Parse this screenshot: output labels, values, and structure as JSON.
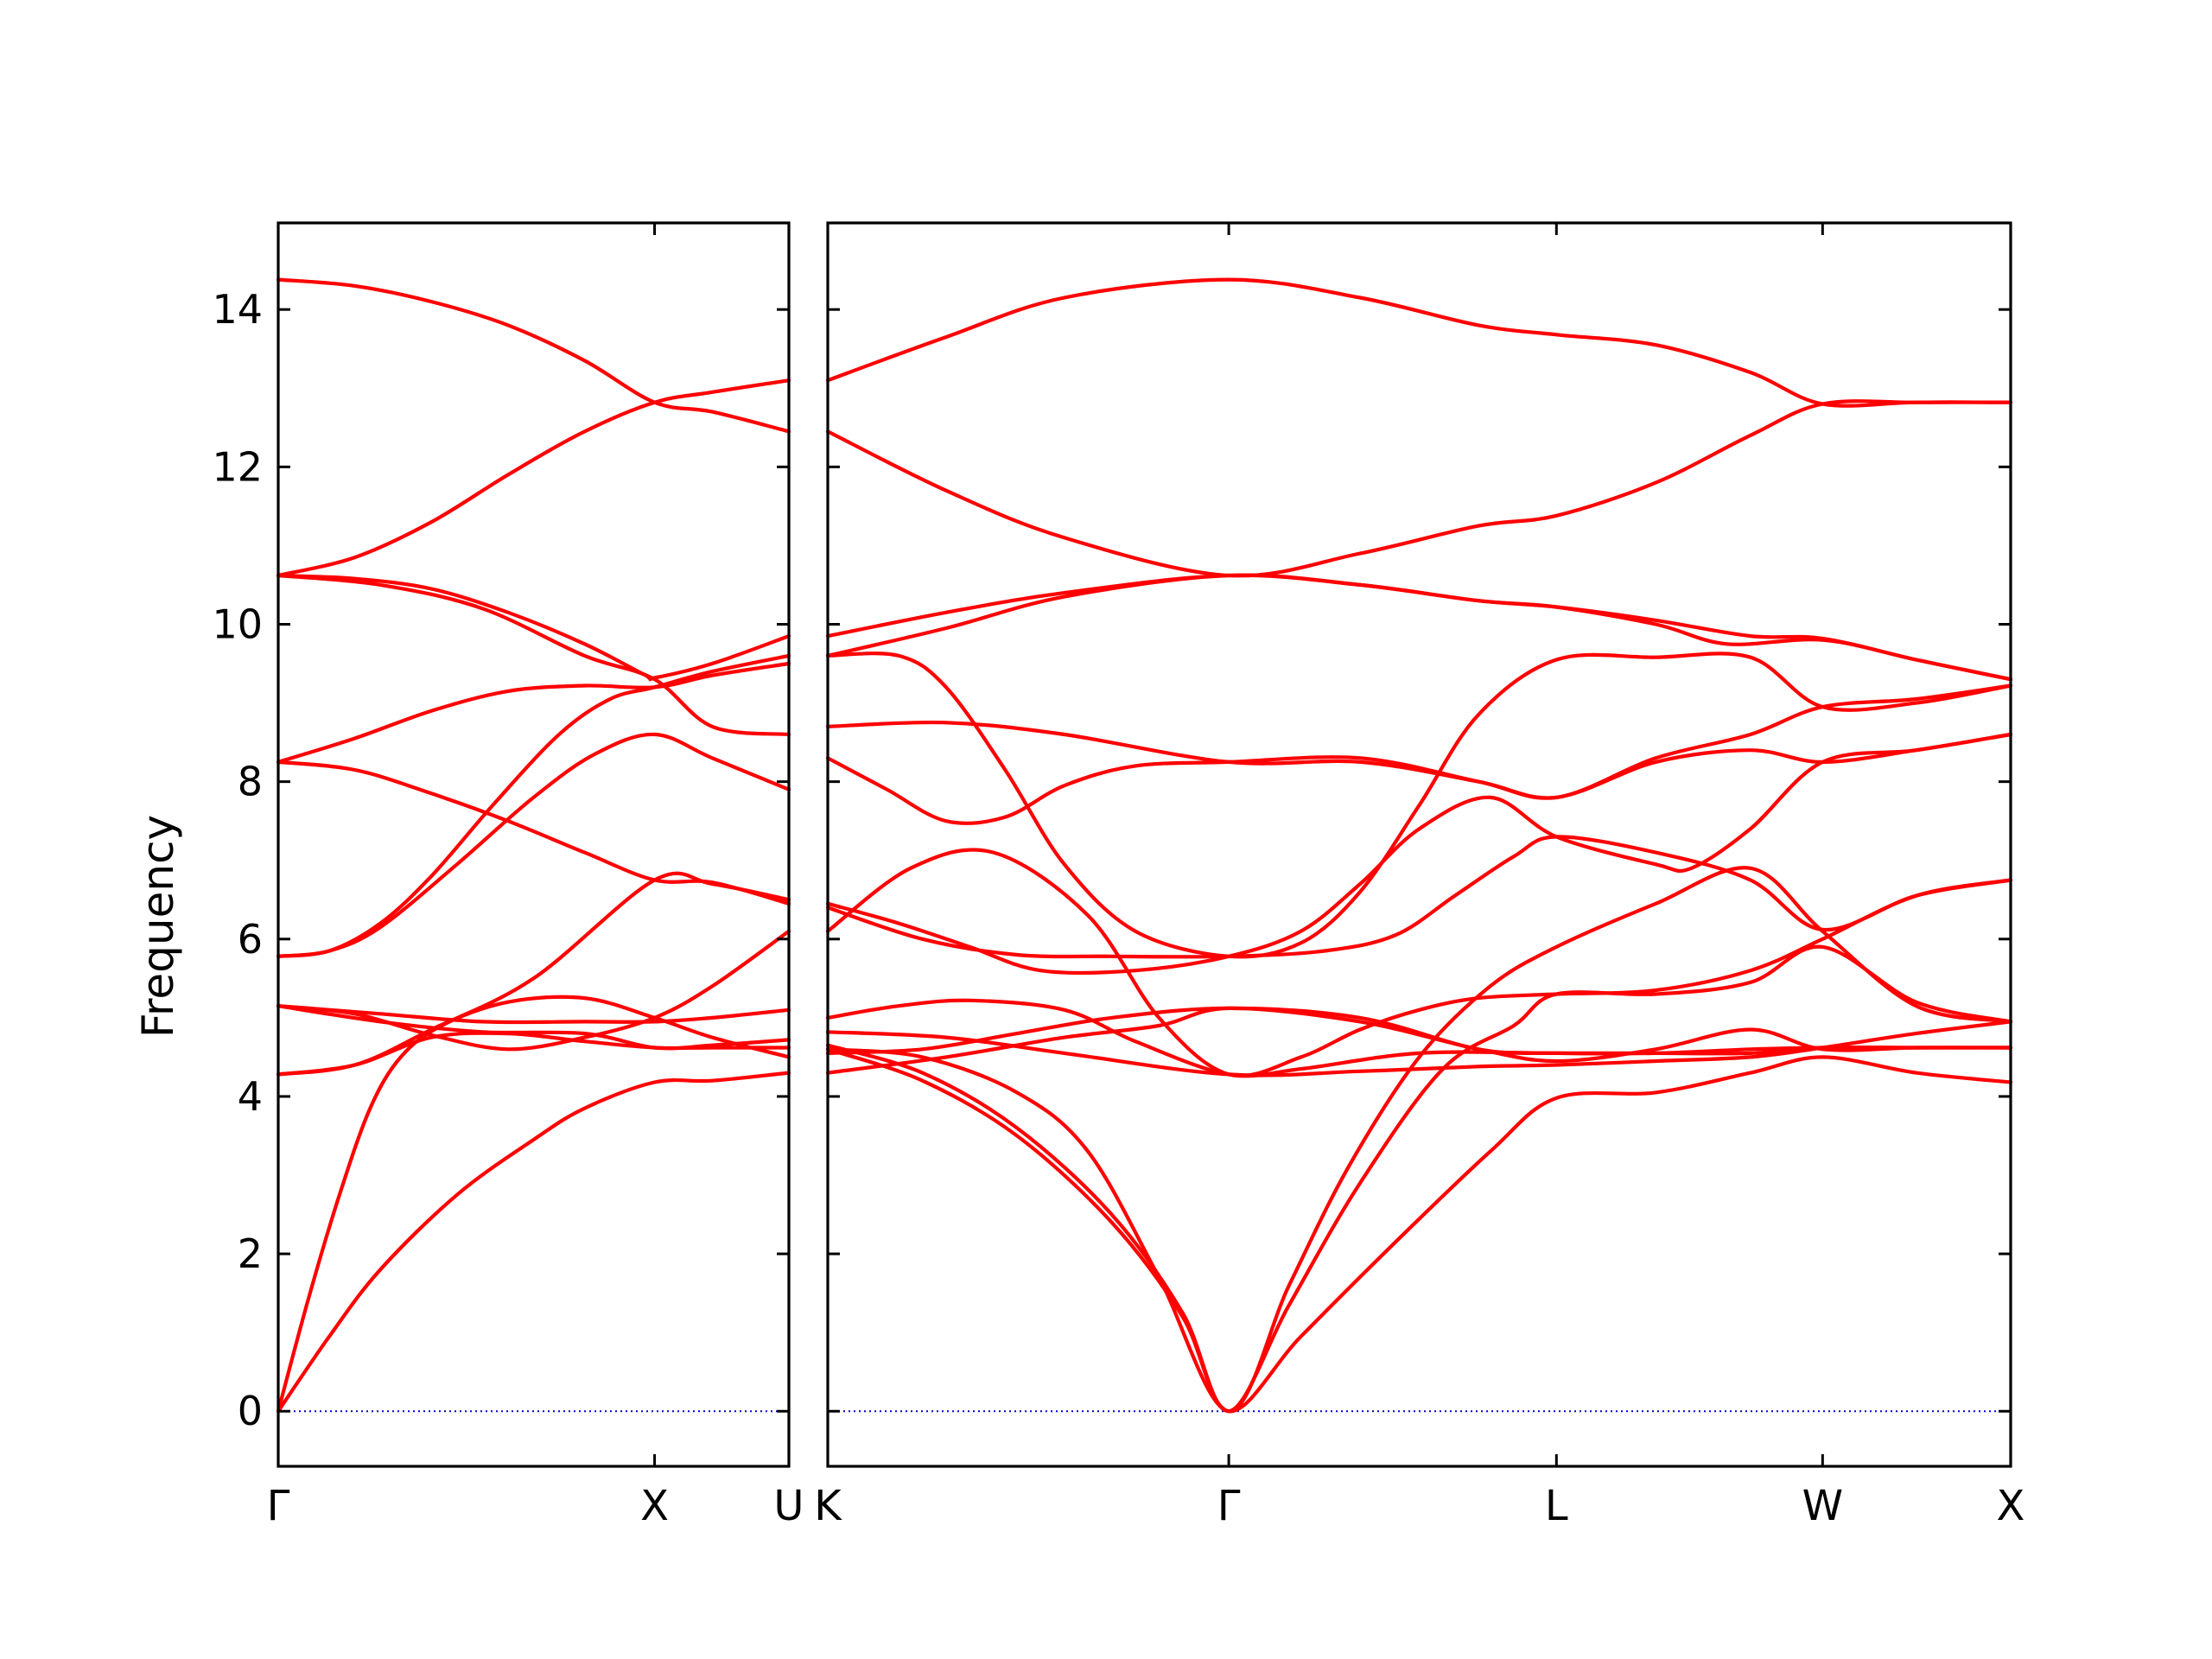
{
  "chart_data": {
    "type": "line",
    "title": "",
    "ylabel": "Frequency",
    "ylim": [
      -0.7,
      15.1
    ],
    "yticks": [
      0,
      2,
      4,
      6,
      8,
      10,
      12,
      14
    ],
    "colors": {
      "bands": "#ff0000",
      "zero_line": "#0000cc"
    },
    "panels": [
      {
        "xlim": [
          0,
          1
        ],
        "ticks": [
          {
            "x": 0,
            "label": "Γ"
          },
          {
            "x": 0.737,
            "label": "X"
          },
          {
            "x": 1,
            "label": "U"
          }
        ],
        "bands": [
          {
            "name": "band 1",
            "x": [
              0,
              0.1,
              0.2,
              0.35,
              0.5,
              0.6,
              0.737,
              0.85,
              1
            ],
            "y": [
              0,
              0.95,
              1.8,
              2.75,
              3.45,
              3.85,
              4.18,
              4.2,
              4.3
            ]
          },
          {
            "name": "band 2",
            "x": [
              0,
              0.06,
              0.12,
              0.18,
              0.24,
              0.32,
              0.45,
              0.6,
              0.737,
              0.85,
              1
            ],
            "y": [
              0,
              1.45,
              2.75,
              3.85,
              4.5,
              4.9,
              5.2,
              5.25,
              5.0,
              4.75,
              4.5
            ]
          },
          {
            "name": "band 3",
            "x": [
              0,
              0.15,
              0.3,
              0.45,
              0.6,
              0.737,
              0.85,
              1
            ],
            "y": [
              4.28,
              4.4,
              4.75,
              4.8,
              4.7,
              4.62,
              4.62,
              4.62
            ]
          },
          {
            "name": "band 4",
            "x": [
              0,
              0.15,
              0.3,
              0.5,
              0.737,
              0.85,
              1
            ],
            "y": [
              4.28,
              4.4,
              4.85,
              5.5,
              6.75,
              6.7,
              6.5
            ]
          },
          {
            "name": "band 5",
            "x": [
              0,
              0.15,
              0.3,
              0.45,
              0.6,
              0.737,
              0.85,
              1
            ],
            "y": [
              5.15,
              5.05,
              4.78,
              4.6,
              4.75,
              5.0,
              5.4,
              6.1
            ]
          },
          {
            "name": "band 6",
            "x": [
              0,
              0.2,
              0.4,
              0.6,
              0.737,
              0.85,
              1
            ],
            "y": [
              5.15,
              5.05,
              4.95,
              4.95,
              4.95,
              5.0,
              5.1
            ]
          },
          {
            "name": "band 7",
            "x": [
              0,
              0.2,
              0.4,
              0.6,
              0.737,
              0.85,
              1
            ],
            "y": [
              5.15,
              4.95,
              4.82,
              4.8,
              4.62,
              4.65,
              4.72
            ]
          },
          {
            "name": "band 8",
            "x": [
              0,
              0.1,
              0.2,
              0.3,
              0.42,
              0.55,
              0.65,
              0.737,
              0.85,
              1
            ],
            "y": [
              5.78,
              5.85,
              6.2,
              6.8,
              7.7,
              8.6,
              9.05,
              9.2,
              9.4,
              9.6
            ]
          },
          {
            "name": "band 9",
            "x": [
              0,
              0.1,
              0.2,
              0.35,
              0.5,
              0.62,
              0.737,
              0.85,
              1
            ],
            "y": [
              5.78,
              5.85,
              6.15,
              6.95,
              7.8,
              8.35,
              8.6,
              8.3,
              7.9
            ]
          },
          {
            "name": "band 10",
            "x": [
              0,
              0.15,
              0.3,
              0.45,
              0.6,
              0.737,
              0.85,
              1
            ],
            "y": [
              8.25,
              8.55,
              8.9,
              9.15,
              9.22,
              9.2,
              9.35,
              9.5
            ]
          },
          {
            "name": "band 11",
            "x": [
              0,
              0.15,
              0.3,
              0.45,
              0.6,
              0.737,
              0.85,
              1
            ],
            "y": [
              8.25,
              8.15,
              7.85,
              7.5,
              7.1,
              6.75,
              6.72,
              6.45
            ]
          },
          {
            "name": "band 12",
            "x": [
              0,
              0.15,
              0.3,
              0.45,
              0.6,
              0.72,
              0.737,
              0.85,
              1
            ],
            "y": [
              10.62,
              10.58,
              10.45,
              10.15,
              9.75,
              9.35,
              9.32,
              9.5,
              9.85
            ]
          },
          {
            "name": "band 13",
            "x": [
              0,
              0.2,
              0.4,
              0.6,
              0.737,
              0.85,
              1
            ],
            "y": [
              10.62,
              10.5,
              10.2,
              9.6,
              9.3,
              8.7,
              8.6
            ]
          },
          {
            "name": "band 14",
            "x": [
              0,
              0.15,
              0.3,
              0.45,
              0.6,
              0.737,
              0.85,
              1
            ],
            "y": [
              10.62,
              10.85,
              11.3,
              11.9,
              12.45,
              12.82,
              12.95,
              13.1
            ]
          },
          {
            "name": "band 15",
            "x": [
              0,
              0.15,
              0.3,
              0.45,
              0.6,
              0.737,
              0.85,
              1
            ],
            "y": [
              14.38,
              14.3,
              14.1,
              13.8,
              13.35,
              12.82,
              12.7,
              12.45
            ]
          }
        ]
      },
      {
        "xlim": [
          0,
          1
        ],
        "ticks": [
          {
            "x": 0,
            "label": "K"
          },
          {
            "x": 0.339,
            "label": "Γ"
          },
          {
            "x": 0.616,
            "label": "L"
          },
          {
            "x": 0.841,
            "label": "W"
          },
          {
            "x": 1,
            "label": "X"
          }
        ],
        "bands": [
          {
            "name": "band 1",
            "x": [
              0,
              0.08,
              0.16,
              0.24,
              0.3,
              0.339,
              0.4,
              0.48,
              0.56,
              0.616,
              0.7,
              0.78,
              0.841,
              0.92,
              1
            ],
            "y": [
              4.6,
              4.2,
              3.5,
              2.4,
              1.2,
              0,
              0.95,
              2.15,
              3.3,
              3.98,
              4.05,
              4.3,
              4.5,
              4.3,
              4.18
            ]
          },
          {
            "name": "band 2",
            "x": [
              0,
              0.08,
              0.16,
              0.24,
              0.3,
              0.339,
              0.39,
              0.45,
              0.52,
              0.58,
              0.616,
              0.7,
              0.78,
              0.841,
              0.92,
              1
            ],
            "y": [
              4.65,
              4.3,
              3.6,
              2.5,
              1.25,
              0,
              1.35,
              2.9,
              4.35,
              4.9,
              5.3,
              5.3,
              5.45,
              5.9,
              5.2,
              4.95
            ]
          },
          {
            "name": "band 3",
            "x": [
              0,
              0.08,
              0.16,
              0.22,
              0.28,
              0.339,
              0.39,
              0.44,
              0.5,
              0.56,
              0.616,
              0.7,
              0.78,
              0.841,
              0.92,
              1
            ],
            "y": [
              4.6,
              4.5,
              4.05,
              3.3,
              1.7,
              0,
              1.6,
              3.1,
              4.5,
              5.4,
              5.9,
              6.45,
              6.9,
              6.1,
              5.15,
              4.95
            ]
          },
          {
            "name": "band 4",
            "x": [
              0,
              0.1,
              0.2,
              0.28,
              0.339,
              0.45,
              0.55,
              0.616,
              0.7,
              0.78,
              0.841,
              0.92,
              1
            ],
            "y": [
              4.3,
              4.5,
              4.75,
              4.9,
              5.12,
              4.95,
              4.6,
              4.45,
              4.6,
              4.85,
              4.6,
              4.62,
              4.62
            ]
          },
          {
            "name": "band 5",
            "x": [
              0,
              0.08,
              0.16,
              0.24,
              0.339,
              0.45,
              0.55,
              0.616,
              0.7,
              0.78,
              0.841,
              0.92,
              1
            ],
            "y": [
              4.55,
              4.6,
              4.8,
              5.0,
              5.12,
              5.0,
              4.6,
              4.55,
              4.55,
              4.6,
              4.62,
              4.62,
              4.62
            ]
          },
          {
            "name": "band 6",
            "x": [
              0,
              0.1,
              0.2,
              0.339,
              0.45,
              0.55,
              0.616,
              0.7,
              0.78,
              0.841,
              0.92,
              1
            ],
            "y": [
              4.82,
              4.75,
              4.55,
              4.28,
              4.32,
              4.38,
              4.4,
              4.45,
              4.5,
              4.62,
              4.8,
              4.95
            ]
          },
          {
            "name": "band 7",
            "x": [
              0,
              0.06,
              0.12,
              0.2,
              0.26,
              0.339,
              0.4,
              0.5,
              0.616,
              0.7,
              0.78,
              0.841,
              0.92,
              1
            ],
            "y": [
              5.0,
              5.15,
              5.22,
              5.1,
              4.7,
              4.28,
              4.35,
              4.55,
              4.55,
              4.55,
              4.55,
              4.62,
              4.62,
              4.62
            ]
          },
          {
            "name": "band 8",
            "x": [
              0,
              0.07,
              0.14,
              0.22,
              0.28,
              0.339,
              0.4,
              0.45,
              0.5,
              0.55,
              0.616,
              0.7,
              0.78,
              0.841,
              0.92,
              1
            ],
            "y": [
              6.1,
              6.9,
              7.1,
              6.3,
              5.0,
              4.28,
              4.5,
              4.85,
              5.1,
              5.25,
              5.3,
              5.35,
              5.6,
              6.0,
              6.55,
              6.75
            ]
          },
          {
            "name": "band 9",
            "x": [
              0,
              0.08,
              0.16,
              0.24,
              0.339,
              0.42,
              0.48,
              0.53,
              0.58,
              0.616,
              0.7,
              0.78,
              0.841,
              0.92,
              1
            ],
            "y": [
              6.4,
              6.0,
              5.8,
              5.78,
              5.78,
              5.85,
              6.05,
              6.55,
              7.05,
              7.3,
              7.1,
              6.75,
              6.12,
              6.55,
              6.75
            ]
          },
          {
            "name": "band 10",
            "x": [
              0,
              0.06,
              0.12,
              0.18,
              0.26,
              0.339,
              0.4,
              0.45,
              0.5,
              0.56,
              0.616,
              0.7,
              0.73,
              0.78,
              0.841,
              0.92,
              1
            ],
            "y": [
              6.45,
              6.2,
              5.9,
              5.6,
              5.6,
              5.78,
              6.1,
              6.7,
              7.4,
              7.8,
              7.3,
              6.95,
              6.9,
              7.4,
              8.25,
              8.4,
              8.6
            ]
          },
          {
            "name": "band 11",
            "x": [
              0,
              0.06,
              0.1,
              0.15,
              0.2,
              0.26,
              0.339,
              0.4,
              0.45,
              0.5,
              0.55,
              0.616,
              0.7,
              0.78,
              0.841,
              0.92,
              1
            ],
            "y": [
              9.6,
              9.6,
              9.2,
              8.15,
              6.95,
              6.1,
              5.78,
              5.95,
              6.6,
              7.7,
              8.85,
              9.55,
              9.58,
              9.58,
              8.95,
              9.0,
              9.22
            ]
          },
          {
            "name": "band 12",
            "x": [
              0,
              0.05,
              0.1,
              0.15,
              0.2,
              0.26,
              0.339,
              0.45,
              0.55,
              0.616,
              0.7,
              0.78,
              0.841,
              0.92,
              1
            ],
            "y": [
              8.3,
              7.9,
              7.5,
              7.55,
              7.95,
              8.2,
              8.25,
              8.3,
              8.0,
              7.8,
              8.3,
              8.6,
              8.95,
              9.05,
              9.22
            ]
          },
          {
            "name": "band 13",
            "x": [
              0,
              0.1,
              0.2,
              0.339,
              0.45,
              0.55,
              0.616,
              0.7,
              0.78,
              0.841,
              0.92,
              1
            ],
            "y": [
              8.7,
              8.75,
              8.6,
              8.25,
              8.25,
              8.0,
              7.8,
              8.25,
              8.4,
              8.25,
              8.4,
              8.6
            ]
          },
          {
            "name": "band 14",
            "x": [
              0,
              0.1,
              0.2,
              0.339,
              0.45,
              0.55,
              0.616,
              0.7,
              0.78,
              0.841,
              0.92,
              1
            ],
            "y": [
              9.6,
              9.95,
              10.35,
              10.62,
              10.5,
              10.3,
              10.22,
              10.05,
              9.85,
              9.82,
              9.55,
              9.3
            ]
          },
          {
            "name": "band 15",
            "x": [
              0,
              0.1,
              0.2,
              0.339,
              0.45,
              0.55,
              0.616,
              0.7,
              0.76,
              0.841,
              0.92,
              1
            ],
            "y": [
              9.85,
              10.15,
              10.4,
              10.62,
              10.5,
              10.3,
              10.22,
              10.0,
              9.75,
              9.8,
              9.55,
              9.3
            ]
          },
          {
            "name": "band 16",
            "x": [
              0,
              0.1,
              0.2,
              0.339,
              0.45,
              0.55,
              0.616,
              0.7,
              0.78,
              0.841,
              0.92,
              1
            ],
            "y": [
              12.45,
              11.7,
              11.1,
              10.62,
              10.9,
              11.25,
              11.38,
              11.8,
              12.4,
              12.8,
              12.82,
              12.82
            ]
          },
          {
            "name": "band 17",
            "x": [
              0,
              0.1,
              0.2,
              0.339,
              0.45,
              0.55,
              0.616,
              0.7,
              0.78,
              0.841,
              0.92,
              1
            ],
            "y": [
              13.1,
              13.65,
              14.15,
              14.38,
              14.15,
              13.8,
              13.68,
              13.55,
              13.2,
              12.8,
              12.82,
              12.82
            ]
          }
        ]
      }
    ]
  }
}
